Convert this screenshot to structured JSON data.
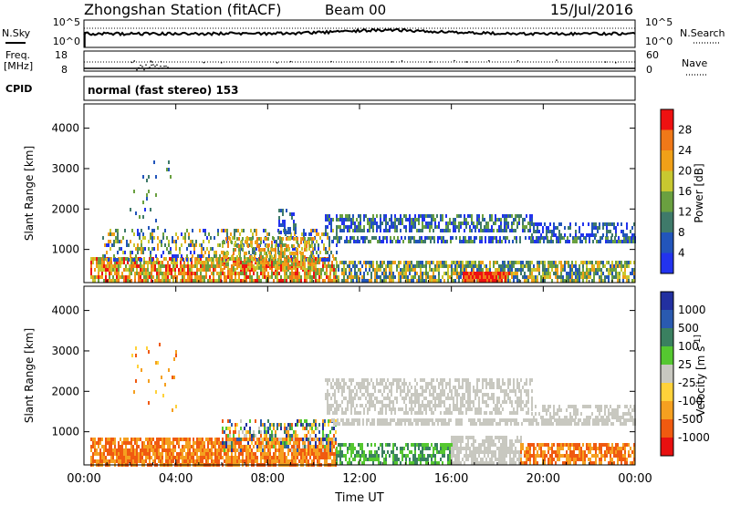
{
  "header": {
    "station": "Zhongshan Station (fitACF)",
    "beam": "Beam 00",
    "date": "15/Jul/2016"
  },
  "strips": {
    "nsky_label": "N.Sky",
    "nsearch_label": "N.Search",
    "noise_ticks": [
      "10^5",
      "10^0"
    ],
    "freq_label": "Freq.",
    "freq_unit": "[MHz]",
    "freq_ticks": [
      "18",
      "8"
    ],
    "nave_label": "Nave",
    "nave_ticks": [
      "60",
      "0"
    ],
    "cpid_label": "CPID",
    "cpid_text": "normal (fast stereo) 153"
  },
  "colors": {
    "power": [
      "#2233ee",
      "#2255bb",
      "#3f7a6a",
      "#6aa040",
      "#c8c830",
      "#f0a018",
      "#f07818",
      "#ee1111"
    ],
    "velocity": [
      "#e81010",
      "#f05a10",
      "#f5a020",
      "#ffd23a",
      "#c8c8c0",
      "#55c830",
      "#3a8060",
      "#2a5ab0",
      "#2230a0"
    ]
  },
  "chart_data": [
    {
      "type": "heatmap",
      "name": "power",
      "ylabel": "Slant Range [km]",
      "ylim": [
        180,
        4600
      ],
      "yticks": [
        1000,
        2000,
        3000,
        4000
      ],
      "colorbar_label": "Power [dB]",
      "colorbar_ticks": [
        "4",
        "8",
        "12",
        "16",
        "20",
        "24",
        "28"
      ],
      "xlim_hours": [
        0,
        24
      ],
      "echo_regions": [
        {
          "t0": 0.3,
          "t1": 11.0,
          "r0": 200,
          "r1": 800,
          "level_min": 3,
          "level_max": 7,
          "density": 0.78
        },
        {
          "t0": 0.8,
          "t1": 11.0,
          "r0": 700,
          "r1": 1500,
          "level_min": 0,
          "level_max": 5,
          "density": 0.35
        },
        {
          "t0": 6.0,
          "t1": 10.0,
          "r0": 500,
          "r1": 1300,
          "level_min": 3,
          "level_max": 6,
          "density": 0.45
        },
        {
          "t0": 8.5,
          "t1": 9.2,
          "r0": 1400,
          "r1": 2000,
          "level_min": 0,
          "level_max": 2,
          "density": 0.55
        },
        {
          "t0": 10.5,
          "t1": 19.5,
          "r0": 1450,
          "r1": 1850,
          "level_min": 0,
          "level_max": 3,
          "density": 0.6
        },
        {
          "t0": 10.8,
          "t1": 24.0,
          "r0": 1150,
          "r1": 1330,
          "level_min": 0,
          "level_max": 3,
          "density": 0.65
        },
        {
          "t0": 19.5,
          "t1": 24.0,
          "r0": 1350,
          "r1": 1650,
          "level_min": 0,
          "level_max": 2,
          "density": 0.45
        },
        {
          "t0": 11.0,
          "t1": 24.0,
          "r0": 200,
          "r1": 700,
          "level_min": 1,
          "level_max": 5,
          "density": 0.7
        },
        {
          "t0": 16.5,
          "t1": 18.5,
          "r0": 200,
          "r1": 450,
          "level_min": 6,
          "level_max": 7,
          "density": 0.85
        },
        {
          "t0": 2.0,
          "t1": 4.0,
          "r0": 1500,
          "r1": 3200,
          "level_min": 0,
          "level_max": 3,
          "density": 0.05
        }
      ]
    },
    {
      "type": "heatmap",
      "name": "velocity",
      "ylabel": "Slant Range [km]",
      "ylim": [
        180,
        4600
      ],
      "yticks": [
        1000,
        2000,
        3000,
        4000
      ],
      "xlabel": "Time UT",
      "xticks": [
        "00:00",
        "04:00",
        "08:00",
        "12:00",
        "16:00",
        "20:00",
        "00:00"
      ],
      "xlim_hours": [
        0,
        24
      ],
      "colorbar_label": "Velocity [m s^-1]",
      "colorbar_ticks": [
        "-1000",
        "-500",
        "-100",
        "-25",
        "25",
        "100",
        "500",
        "1000"
      ],
      "echo_regions": [
        {
          "t0": 0.3,
          "t1": 11.0,
          "r0": 200,
          "r1": 850,
          "level_min": 1,
          "level_max": 2,
          "density": 0.82
        },
        {
          "t0": 6.0,
          "t1": 11.0,
          "r0": 500,
          "r1": 1300,
          "level_min": 1,
          "level_max": 8,
          "density": 0.45
        },
        {
          "t0": 10.5,
          "t1": 19.5,
          "r0": 1450,
          "r1": 2300,
          "level_min": 4,
          "level_max": 4,
          "density": 0.55
        },
        {
          "t0": 10.8,
          "t1": 24.0,
          "r0": 1150,
          "r1": 1330,
          "level_min": 4,
          "level_max": 4,
          "density": 0.75
        },
        {
          "t0": 19.5,
          "t1": 24.0,
          "r0": 1350,
          "r1": 1650,
          "level_min": 4,
          "level_max": 4,
          "density": 0.5
        },
        {
          "t0": 11.0,
          "t1": 16.0,
          "r0": 200,
          "r1": 700,
          "level_min": 5,
          "level_max": 6,
          "density": 0.6
        },
        {
          "t0": 16.0,
          "t1": 19.0,
          "r0": 200,
          "r1": 900,
          "level_min": 4,
          "level_max": 4,
          "density": 0.7
        },
        {
          "t0": 19.0,
          "t1": 24.0,
          "r0": 200,
          "r1": 700,
          "level_min": 1,
          "level_max": 2,
          "density": 0.7
        },
        {
          "t0": 2.0,
          "t1": 4.0,
          "r0": 1500,
          "r1": 3200,
          "level_min": 1,
          "level_max": 3,
          "density": 0.05
        }
      ]
    }
  ]
}
